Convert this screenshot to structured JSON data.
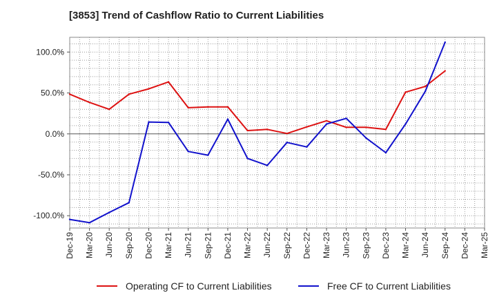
{
  "title": "[3853]  Trend of Cashflow Ratio to Current Liabilities",
  "chart_data": {
    "type": "line",
    "title": "[3853]  Trend of Cashflow Ratio to Current Liabilities",
    "x": [
      "Dec-19",
      "Mar-20",
      "Jun-20",
      "Sep-20",
      "Dec-20",
      "Mar-21",
      "Jun-21",
      "Sep-21",
      "Dec-21",
      "Mar-22",
      "Jun-22",
      "Sep-22",
      "Dec-22",
      "Mar-23",
      "Jun-23",
      "Sep-23",
      "Dec-23",
      "Mar-24",
      "Jun-24",
      "Sep-24",
      "Dec-24",
      "Mar-25"
    ],
    "x_ticks": [
      "Dec-19",
      "Mar-20",
      "Jun-20",
      "Sep-20",
      "Dec-20",
      "Mar-21",
      "Jun-21",
      "Sep-21",
      "Dec-21",
      "Mar-22",
      "Jun-22",
      "Sep-22",
      "Dec-22",
      "Mar-23",
      "Jun-23",
      "Sep-23",
      "Dec-23",
      "Mar-24",
      "Jun-24",
      "Sep-24",
      "Dec-24",
      "Mar-25"
    ],
    "y_ticks": [
      100,
      50,
      0,
      -50,
      -100
    ],
    "y_tick_labels": [
      "100.0%",
      "50.0%",
      "0.0%",
      "-50.0%",
      "-100.0%"
    ],
    "ylim": [
      -115,
      118
    ],
    "grid": true,
    "legend_position": "bottom",
    "series": [
      {
        "name": "Operating CF to Current Liabilities",
        "color": "#dd1111",
        "values": [
          48.5,
          38.5,
          30,
          48.5,
          55,
          63.5,
          32,
          33,
          33,
          4,
          5.5,
          0.5,
          8.5,
          16,
          8,
          8,
          5.5,
          51,
          58,
          77,
          null,
          null
        ]
      },
      {
        "name": "Free CF to Current Liabilities",
        "color": "#1111cc",
        "values": [
          -104.5,
          -108.5,
          -96,
          -84,
          14.5,
          14,
          -21.5,
          -26,
          18,
          -30,
          -38.5,
          -10.5,
          -16,
          12,
          19,
          -5,
          -23,
          12,
          52,
          112,
          null,
          null
        ]
      }
    ]
  }
}
